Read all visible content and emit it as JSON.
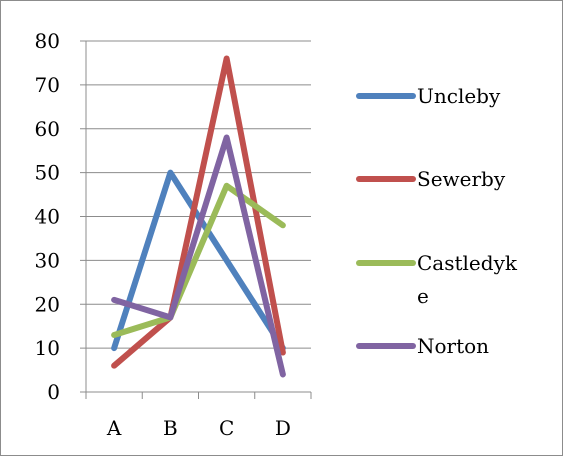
{
  "chart_data": {
    "type": "line",
    "title": "",
    "xlabel": "",
    "ylabel": "",
    "categories": [
      "A",
      "B",
      "C",
      "D"
    ],
    "ylim": [
      0,
      80
    ],
    "y_ticks": [
      "0",
      "10",
      "20",
      "30",
      "40",
      "50",
      "60",
      "70",
      "80"
    ],
    "grid": true,
    "legend_position": "right",
    "series": [
      {
        "name": "Uncleby",
        "legend_lines": [
          "Uncleby"
        ],
        "color": "#4f81bd",
        "values": [
          10,
          50,
          30,
          10
        ]
      },
      {
        "name": "Sewerby",
        "legend_lines": [
          "Sewerby"
        ],
        "color": "#c0504d",
        "values": [
          6,
          17,
          76,
          9
        ]
      },
      {
        "name": "Castledyke",
        "legend_lines": [
          "Castledyk",
          "e"
        ],
        "color": "#9bbb59",
        "values": [
          13,
          17,
          47,
          38
        ]
      },
      {
        "name": "Norton",
        "legend_lines": [
          "Norton"
        ],
        "color": "#8064a2",
        "values": [
          21,
          17,
          58,
          4
        ]
      }
    ]
  }
}
